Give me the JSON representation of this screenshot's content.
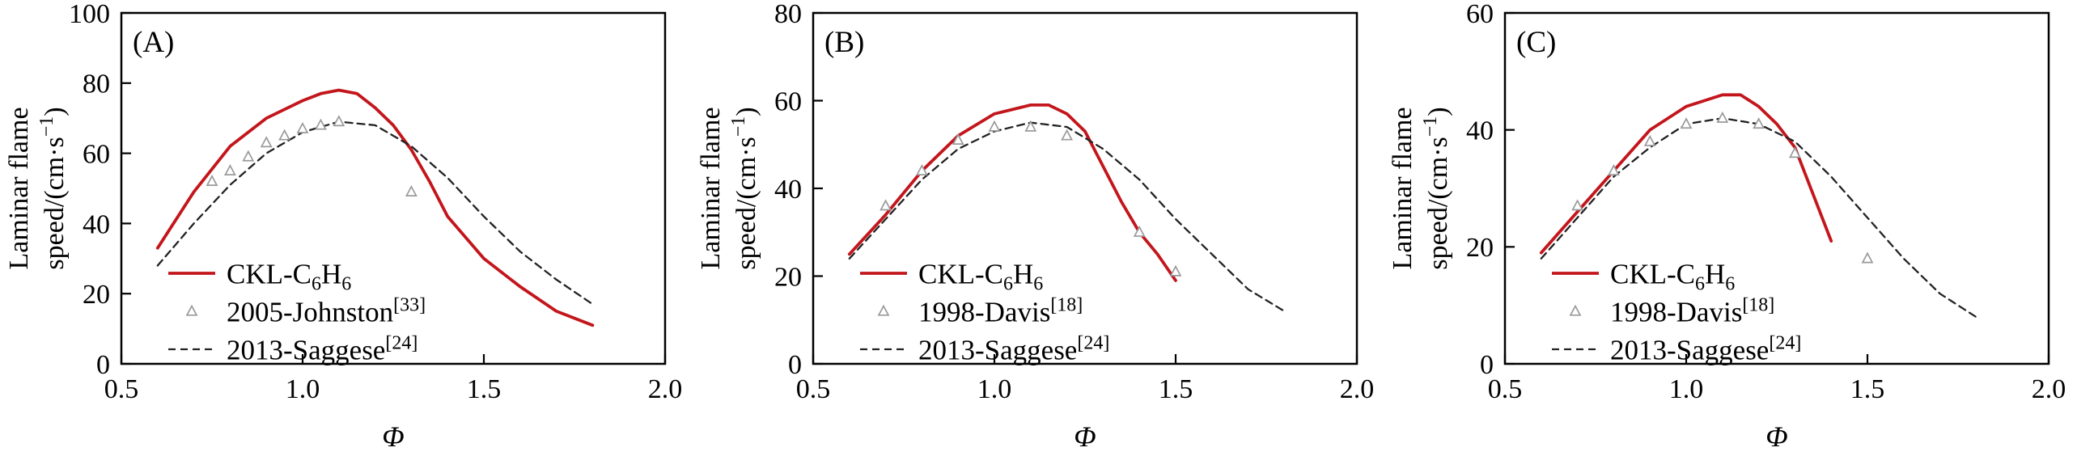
{
  "figure": {
    "colors": {
      "ckl_red": "#c3161c",
      "marker_gray": "#9a9a9a",
      "dash_black": "#222222",
      "axis": "#000000"
    }
  },
  "chart_data": [
    {
      "type": "line",
      "panel_label": "(A)",
      "xlabel": "Φ",
      "ylabel_lines": [
        [
          {
            "t": "Laminar flame"
          }
        ],
        [
          {
            "t": "speed/(cm·s"
          },
          {
            "t": "−1",
            "sup": true
          },
          {
            "t": ")"
          }
        ]
      ],
      "xlim": [
        0.5,
        2.0
      ],
      "ylim": [
        0,
        100
      ],
      "xticks": [
        0.5,
        1.0,
        1.5,
        2.0
      ],
      "yticks": [
        0,
        20,
        40,
        60,
        80,
        100
      ],
      "grid": false,
      "legend_position": "lower-left-inside",
      "series": [
        {
          "name": "CKL-C6H6",
          "kind": "line",
          "style": "solid",
          "color": "#c3161c",
          "x": [
            0.6,
            0.7,
            0.8,
            0.9,
            1.0,
            1.05,
            1.1,
            1.15,
            1.2,
            1.25,
            1.3,
            1.35,
            1.4,
            1.5,
            1.6,
            1.7,
            1.8
          ],
          "y": [
            33,
            49,
            62,
            70,
            75,
            77,
            78,
            77,
            73,
            68,
            61,
            52,
            42,
            30,
            22,
            15,
            11
          ],
          "label_parts": [
            {
              "t": "CKL-C"
            },
            {
              "t": "6",
              "sub": true
            },
            {
              "t": "H"
            },
            {
              "t": "6",
              "sub": true
            }
          ]
        },
        {
          "name": "2005-Johnston [33]",
          "kind": "scatter",
          "marker": "triangle",
          "color": "#9a9a9a",
          "x": [
            0.75,
            0.8,
            0.85,
            0.9,
            0.95,
            1.0,
            1.05,
            1.1,
            1.3
          ],
          "y": [
            52,
            55,
            59,
            63,
            65,
            67,
            68,
            69,
            49
          ],
          "label_parts": [
            {
              "t": "2005-Johnston"
            },
            {
              "t": "[33]",
              "sup": true
            }
          ]
        },
        {
          "name": "2013-Saggese [24]",
          "kind": "line",
          "style": "dashed",
          "color": "#222222",
          "x": [
            0.6,
            0.7,
            0.8,
            0.9,
            1.0,
            1.1,
            1.2,
            1.3,
            1.4,
            1.5,
            1.6,
            1.7,
            1.8
          ],
          "y": [
            28,
            40,
            51,
            60,
            66,
            69,
            68,
            62,
            53,
            42,
            32,
            24,
            17
          ],
          "label_parts": [
            {
              "t": "2013-Saggese"
            },
            {
              "t": "[24]",
              "sup": true
            }
          ]
        }
      ]
    },
    {
      "type": "line",
      "panel_label": "(B)",
      "xlabel": "Φ",
      "ylabel_lines": [
        [
          {
            "t": "Laminar flame"
          }
        ],
        [
          {
            "t": "speed/(cm·s"
          },
          {
            "t": "−1",
            "sup": true
          },
          {
            "t": ")"
          }
        ]
      ],
      "xlim": [
        0.5,
        2.0
      ],
      "ylim": [
        0,
        80
      ],
      "xticks": [
        0.5,
        1.0,
        1.5,
        2.0
      ],
      "yticks": [
        0,
        20,
        40,
        60,
        80
      ],
      "grid": false,
      "legend_position": "lower-left-inside",
      "series": [
        {
          "name": "CKL-C6H6",
          "kind": "line",
          "style": "solid",
          "color": "#c3161c",
          "x": [
            0.6,
            0.7,
            0.8,
            0.9,
            1.0,
            1.05,
            1.1,
            1.15,
            1.2,
            1.25,
            1.3,
            1.35,
            1.4,
            1.45,
            1.5
          ],
          "y": [
            25,
            34,
            44,
            52,
            57,
            58,
            59,
            59,
            57,
            53,
            45,
            37,
            30,
            25,
            19
          ],
          "label_parts": [
            {
              "t": "CKL-C"
            },
            {
              "t": "6",
              "sub": true
            },
            {
              "t": "H"
            },
            {
              "t": "6",
              "sub": true
            }
          ]
        },
        {
          "name": "1998-Davis [18]",
          "kind": "scatter",
          "marker": "triangle",
          "color": "#9a9a9a",
          "x": [
            0.7,
            0.8,
            0.9,
            1.0,
            1.1,
            1.2,
            1.4,
            1.5
          ],
          "y": [
            36,
            44,
            51,
            54,
            54,
            52,
            30,
            21
          ],
          "label_parts": [
            {
              "t": "1998-Davis"
            },
            {
              "t": "[18]",
              "sup": true
            }
          ]
        },
        {
          "name": "2013-Saggese [24]",
          "kind": "line",
          "style": "dashed",
          "color": "#222222",
          "x": [
            0.6,
            0.7,
            0.8,
            0.9,
            1.0,
            1.1,
            1.2,
            1.3,
            1.4,
            1.5,
            1.6,
            1.7,
            1.8
          ],
          "y": [
            24,
            33,
            42,
            49,
            53,
            55,
            54,
            49,
            42,
            33,
            25,
            17,
            12
          ],
          "label_parts": [
            {
              "t": "2013-Saggese"
            },
            {
              "t": "[24]",
              "sup": true
            }
          ]
        }
      ]
    },
    {
      "type": "line",
      "panel_label": "(C)",
      "xlabel": "Φ",
      "ylabel_lines": [
        [
          {
            "t": "Laminar flame"
          }
        ],
        [
          {
            "t": "speed/(cm·s"
          },
          {
            "t": "−1",
            "sup": true
          },
          {
            "t": ")"
          }
        ]
      ],
      "xlim": [
        0.5,
        2.0
      ],
      "ylim": [
        0,
        60
      ],
      "xticks": [
        0.5,
        1.0,
        1.5,
        2.0
      ],
      "yticks": [
        0,
        20,
        40,
        60
      ],
      "grid": false,
      "legend_position": "lower-left-inside",
      "series": [
        {
          "name": "CKL-C6H6",
          "kind": "line",
          "style": "solid",
          "color": "#c3161c",
          "x": [
            0.6,
            0.7,
            0.8,
            0.9,
            1.0,
            1.05,
            1.1,
            1.15,
            1.2,
            1.25,
            1.3,
            1.35,
            1.4
          ],
          "y": [
            19,
            26,
            33,
            40,
            44,
            45,
            46,
            46,
            44,
            41,
            37,
            29,
            21
          ],
          "label_parts": [
            {
              "t": "CKL-C"
            },
            {
              "t": "6",
              "sub": true
            },
            {
              "t": "H"
            },
            {
              "t": "6",
              "sub": true
            }
          ]
        },
        {
          "name": "1998-Davis [18]",
          "kind": "scatter",
          "marker": "triangle",
          "color": "#9a9a9a",
          "x": [
            0.7,
            0.8,
            0.9,
            1.0,
            1.1,
            1.2,
            1.3,
            1.5
          ],
          "y": [
            27,
            33,
            38,
            41,
            42,
            41,
            36,
            18
          ],
          "label_parts": [
            {
              "t": "1998-Davis"
            },
            {
              "t": "[18]",
              "sup": true
            }
          ]
        },
        {
          "name": "2013-Saggese [24]",
          "kind": "line",
          "style": "dashed",
          "color": "#222222",
          "x": [
            0.6,
            0.7,
            0.8,
            0.9,
            1.0,
            1.1,
            1.2,
            1.3,
            1.4,
            1.5,
            1.6,
            1.7,
            1.8
          ],
          "y": [
            18,
            25,
            32,
            37,
            41,
            42,
            41,
            38,
            32,
            25,
            18,
            12,
            8
          ],
          "label_parts": [
            {
              "t": "2013-Saggese"
            },
            {
              "t": "[24]",
              "sup": true
            }
          ]
        }
      ]
    }
  ]
}
